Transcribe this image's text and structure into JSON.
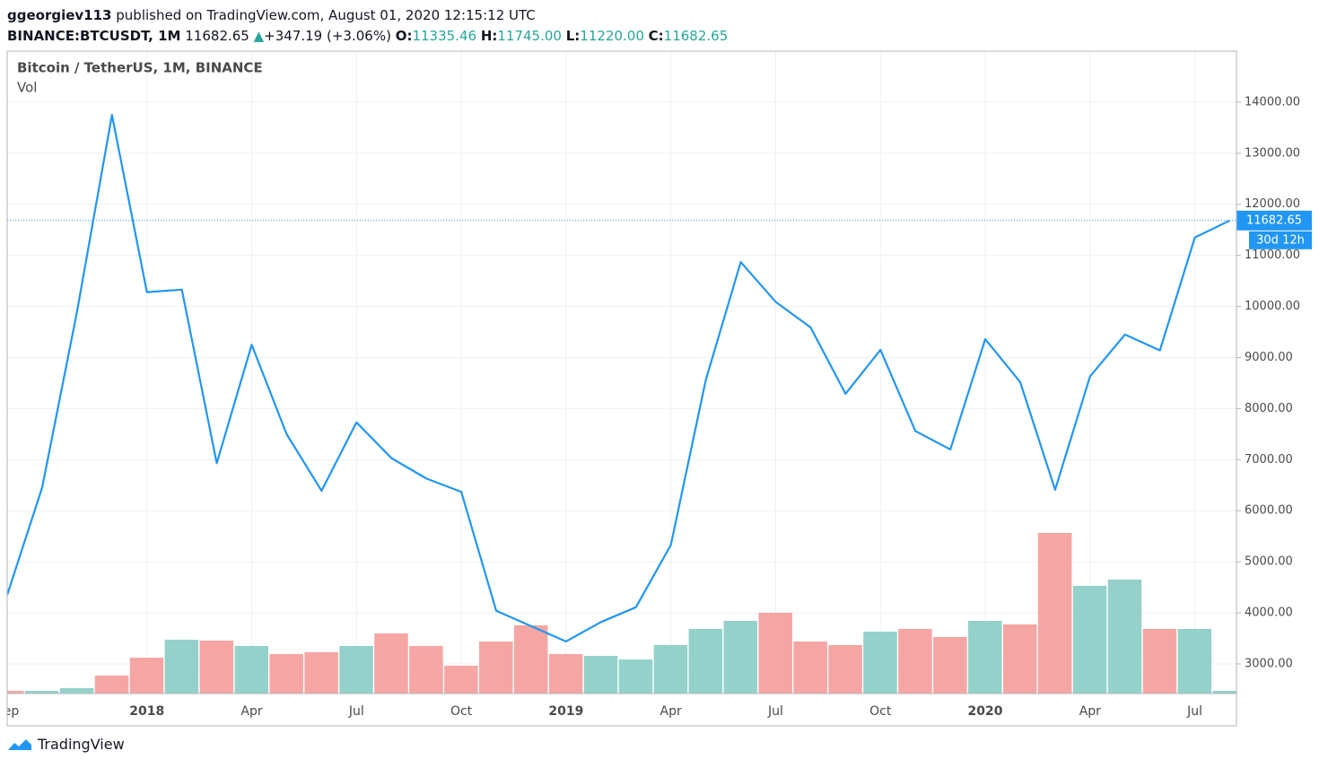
{
  "header": {
    "author": "ggeorgiev113",
    "published": "published on TradingView.com, August 01, 2020 12:15:12 UTC",
    "symbol": "BINANCE:BTCUSDT, 1M",
    "last": 11682.65,
    "change": "+347.19 (+3.06%)",
    "open_label": "O:",
    "open": 11335.46,
    "high_label": "H:",
    "high": {
      "value": 11745,
      "label": "11745.00"
    },
    "low_label": "L:",
    "low": {
      "value": 11220,
      "label": "11220.00"
    },
    "close_label": "C:",
    "close": 11682.65
  },
  "chart_data": {
    "type": "line",
    "title": "Bitcoin / TetherUS, 1M, BINANCE",
    "volume_label": "Vol",
    "categories": [
      "Sep",
      null,
      null,
      null,
      "2018",
      null,
      null,
      "Apr",
      null,
      null,
      "Jul",
      null,
      null,
      "Oct",
      null,
      null,
      "2019",
      null,
      null,
      "Apr",
      null,
      null,
      "Jul",
      null,
      null,
      "Oct",
      null,
      null,
      "2020",
      null,
      null,
      "Apr",
      null,
      null,
      "Jul",
      null
    ],
    "values": [
      4350,
      6450,
      9900,
      13750,
      10280,
      10330,
      6930,
      9250,
      7500,
      6390,
      7730,
      7030,
      6630,
      6370,
      4040,
      3740,
      3440,
      3820,
      4110,
      5330,
      8560,
      10870,
      10090,
      9590,
      8290,
      9150,
      7560,
      7200,
      9360,
      8520,
      6410,
      8630,
      9450,
      9140,
      11350,
      11682.65
    ],
    "color": "#2196f3",
    "volume": [
      3,
      3,
      6,
      20,
      40,
      60,
      59,
      53,
      44,
      46,
      53,
      67,
      53,
      31,
      58,
      76,
      44,
      42,
      38,
      54,
      72,
      81,
      90,
      58,
      54,
      69,
      72,
      63,
      81,
      77,
      179,
      120,
      127,
      72,
      72,
      3
    ],
    "volume_colors": [
      "#f5a6a4",
      "#94d1ca",
      "#94d1ca",
      "#f5a6a4",
      "#f5a6a4",
      "#94d1ca",
      "#f5a6a4",
      "#94d1ca",
      "#f5a6a4",
      "#f5a6a4",
      "#94d1ca",
      "#f5a6a4",
      "#f5a6a4",
      "#f5a6a4",
      "#f5a6a4",
      "#f5a6a4",
      "#f5a6a4",
      "#94d1ca",
      "#94d1ca",
      "#94d1ca",
      "#94d1ca",
      "#94d1ca",
      "#f5a6a4",
      "#f5a6a4",
      "#f5a6a4",
      "#94d1ca",
      "#f5a6a4",
      "#f5a6a4",
      "#94d1ca",
      "#f5a6a4",
      "#f5a6a4",
      "#94d1ca",
      "#94d1ca",
      "#f5a6a4",
      "#94d1ca",
      "#94d1ca"
    ],
    "vol_ylim": [
      0,
      716
    ],
    "ylim": [
      2420,
      15000
    ],
    "yticks": [
      {
        "value": 3000,
        "label": "3000.00"
      },
      {
        "value": 4000,
        "label": "4000.00"
      },
      {
        "value": 5000,
        "label": "5000.00"
      },
      {
        "value": 6000,
        "label": "6000.00"
      },
      {
        "value": 7000,
        "label": "7000.00"
      },
      {
        "value": 8000,
        "label": "8000.00"
      },
      {
        "value": 9000,
        "label": "9000.00"
      },
      {
        "value": 10000,
        "label": "10000.00"
      },
      {
        "value": 11000,
        "label": "11000.00"
      },
      {
        "value": 12000,
        "label": "12000.00"
      },
      {
        "value": 13000,
        "label": "13000.00"
      },
      {
        "value": 14000,
        "label": "14000.00"
      }
    ],
    "grid": true,
    "countdown": "30d 12h"
  },
  "footer": {
    "brand": "TradingView"
  }
}
